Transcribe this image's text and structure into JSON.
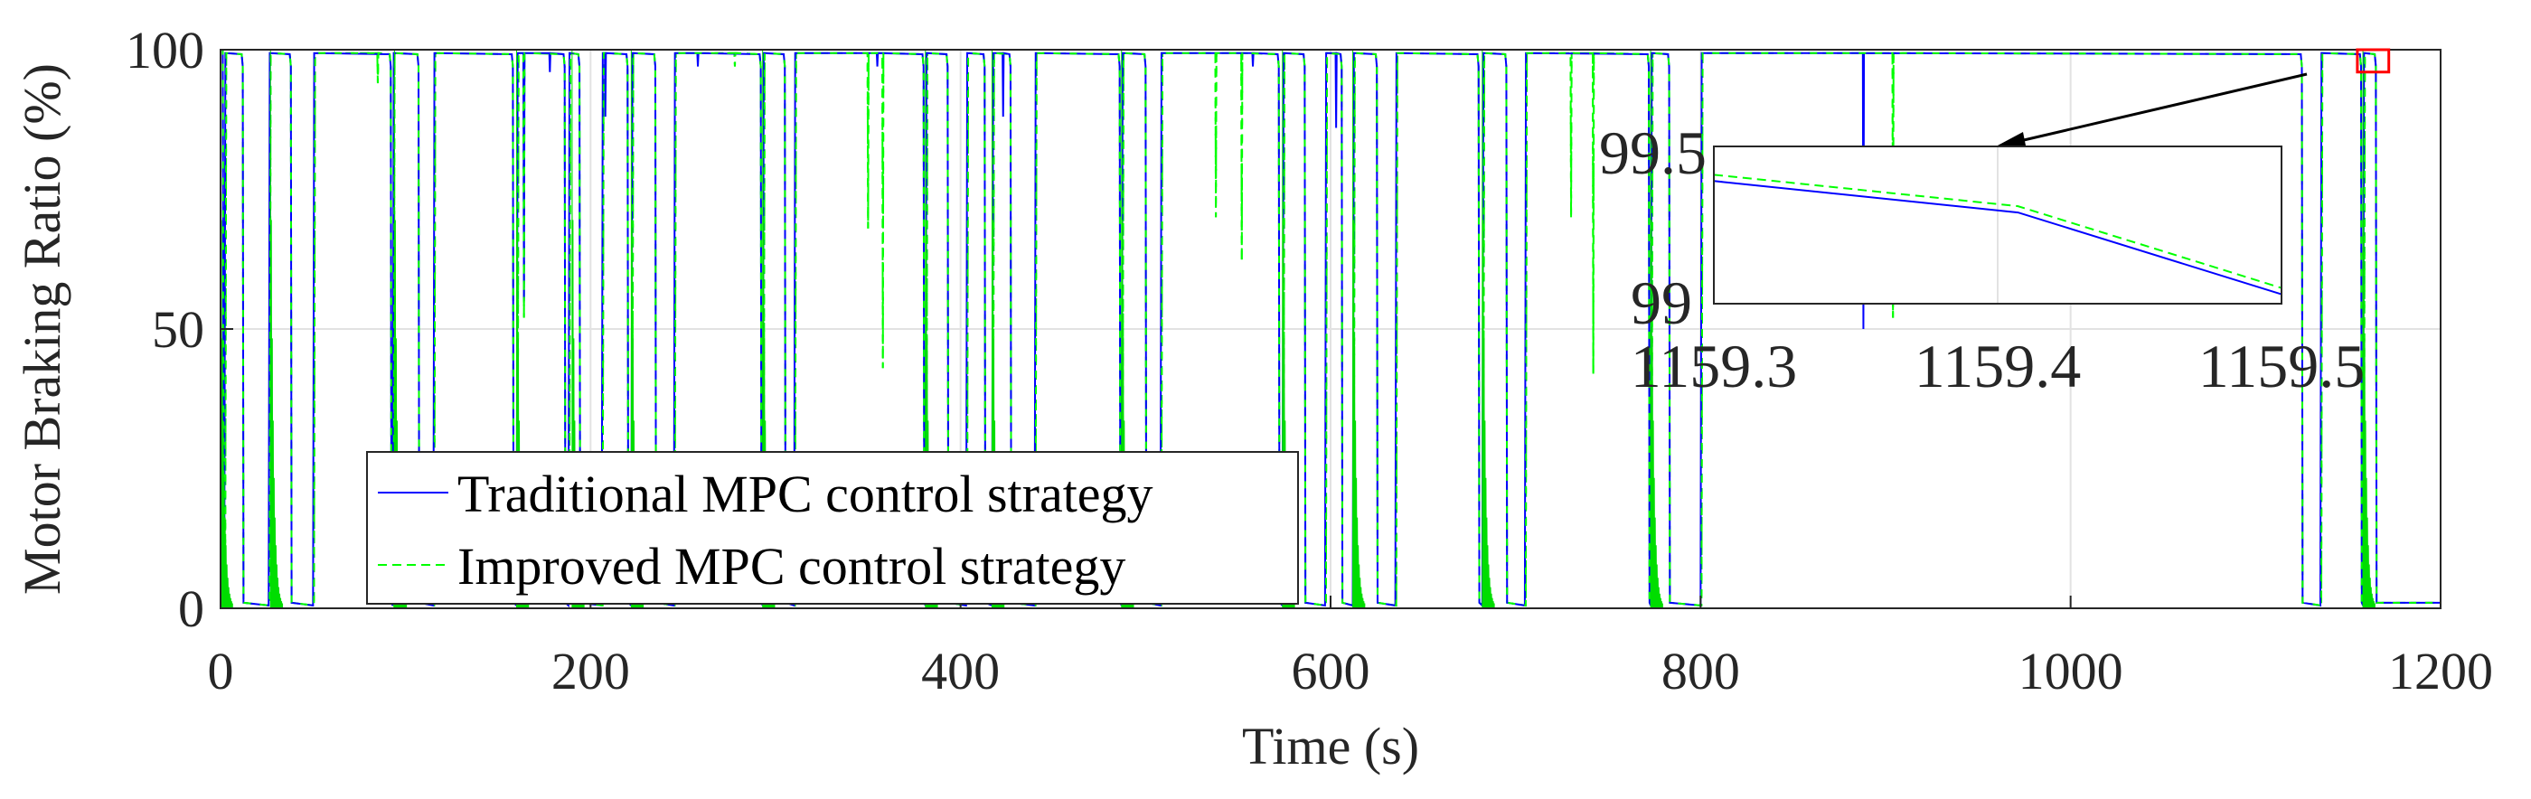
{
  "chart_data": {
    "type": "line",
    "title": "",
    "xlabel": "Time (s)",
    "ylabel": "Motor Braking Ratio (%)",
    "xlim": [
      0,
      1200
    ],
    "ylim": [
      0,
      100
    ],
    "xticks": [
      "0",
      "200",
      "400",
      "600",
      "800",
      "1000",
      "1200"
    ],
    "yticks": [
      "0",
      "50",
      "100"
    ],
    "grid": true,
    "legend_position": "bottom-left",
    "braking_windows": [
      [
        2,
        12
      ],
      [
        26,
        38
      ],
      [
        50,
        92
      ],
      [
        93,
        107
      ],
      [
        115,
        158
      ],
      [
        160,
        186
      ],
      [
        188,
        194
      ],
      [
        206,
        220
      ],
      [
        222,
        235
      ],
      [
        245,
        292
      ],
      [
        293,
        305
      ],
      [
        310,
        380
      ],
      [
        381,
        393
      ],
      [
        403,
        413
      ],
      [
        417,
        427
      ],
      [
        440,
        486
      ],
      [
        487,
        500
      ],
      [
        508,
        572
      ],
      [
        574,
        586
      ],
      [
        597,
        606
      ],
      [
        612,
        625
      ],
      [
        635,
        680
      ],
      [
        682,
        695
      ],
      [
        705,
        772
      ],
      [
        773,
        783
      ],
      [
        800,
        1125
      ],
      [
        1135,
        1157
      ],
      [
        1158,
        1165
      ]
    ],
    "series": [
      {
        "name": "Traditional MPC control strategy",
        "color": "#0000ff",
        "style": "solid",
        "dips": [
          [
            158,
            12
          ],
          [
            164,
            55
          ],
          [
            178,
            96
          ],
          [
            208,
            88
          ],
          [
            258,
            97
          ],
          [
            355,
            97
          ],
          [
            423,
            88
          ],
          [
            558,
            97
          ],
          [
            603,
            86
          ],
          [
            888,
            50
          ]
        ]
      },
      {
        "name": "Improved MPC control strategy",
        "color": "#00ff00",
        "style": "dashed",
        "dips": [
          [
            85,
            94
          ],
          [
            164,
            52
          ],
          [
            278,
            97
          ],
          [
            350,
            68
          ],
          [
            358,
            43
          ],
          [
            538,
            70
          ],
          [
            552,
            62
          ],
          [
            730,
            70
          ],
          [
            742,
            42
          ],
          [
            904,
            52
          ]
        ]
      }
    ],
    "inset": {
      "xlim": [
        1159.25,
        1159.53
      ],
      "ylim": [
        99,
        99.5
      ],
      "xticks": [
        "1159.3",
        "1159.4",
        "1159.5"
      ],
      "yticks": [
        "99",
        "99.5"
      ],
      "series": [
        {
          "name": "Traditional MPC control strategy",
          "x": [
            1159.25,
            1159.4,
            1159.53
          ],
          "y": [
            99.39,
            99.29,
            99.03
          ]
        },
        {
          "name": "Improved MPC control strategy",
          "x": [
            1159.25,
            1159.4,
            1159.53
          ],
          "y": [
            99.41,
            99.31,
            99.05
          ]
        }
      ],
      "highlight_box": {
        "xlim": [
          1155,
          1172
        ],
        "ylim": [
          96,
          100
        ]
      }
    }
  }
}
